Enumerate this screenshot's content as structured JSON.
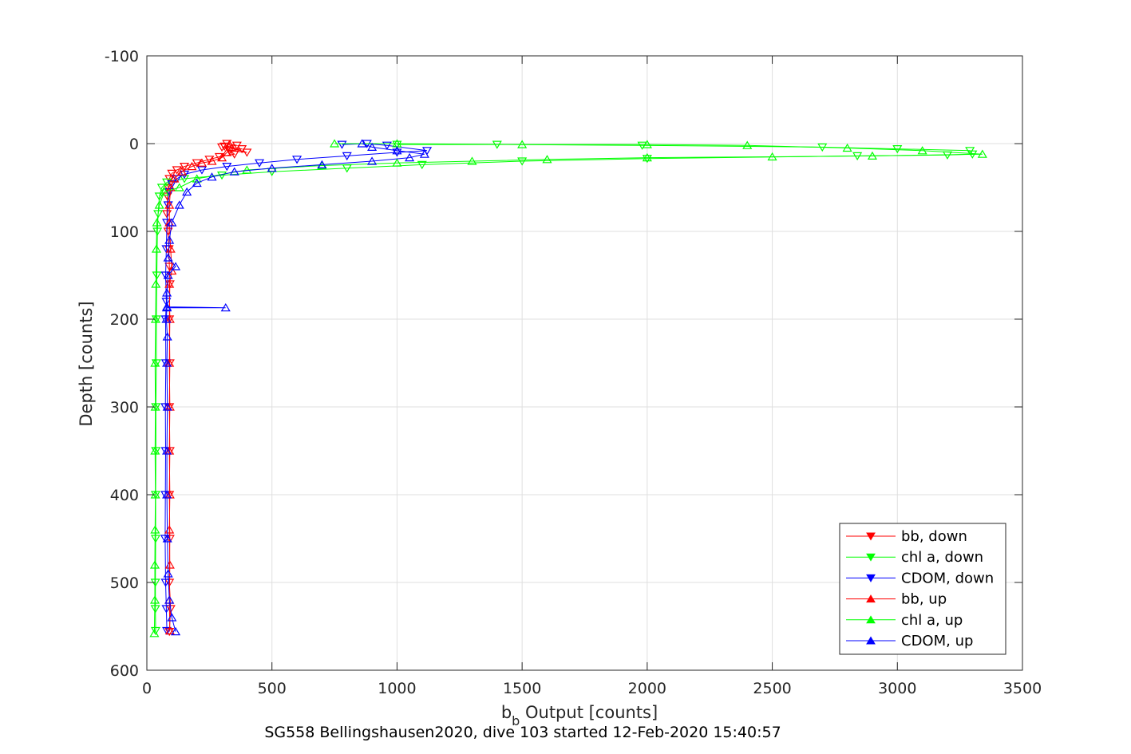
{
  "chart_data": {
    "type": "line",
    "xlabel_main": "b",
    "xlabel_sub": "b",
    "xlabel_rest": " Output [counts]",
    "ylabel": "Depth [counts]",
    "caption": "SG558 Bellingshausen2020, dive 103 started 12-Feb-2020 15:40:57",
    "xlim": [
      0,
      3500
    ],
    "ylim": [
      -100,
      600
    ],
    "y_reversed": true,
    "grid": true,
    "legend_position": "bottom-right",
    "x_ticks": [
      "0",
      "500",
      "1000",
      "1500",
      "2000",
      "2500",
      "3000",
      "3500"
    ],
    "y_ticks": [
      "-100",
      "0",
      "100",
      "200",
      "300",
      "400",
      "500",
      "600"
    ],
    "series": [
      {
        "name": "bb, down",
        "color": "#ff0000",
        "marker": "triangle-down",
        "points": [
          [
            320,
            0
          ],
          [
            360,
            2
          ],
          [
            300,
            4
          ],
          [
            380,
            6
          ],
          [
            330,
            8
          ],
          [
            400,
            10
          ],
          [
            310,
            3
          ],
          [
            350,
            12
          ],
          [
            290,
            15
          ],
          [
            250,
            18
          ],
          [
            200,
            22
          ],
          [
            150,
            26
          ],
          [
            120,
            30
          ],
          [
            100,
            34
          ],
          [
            90,
            40
          ],
          [
            85,
            50
          ],
          [
            82,
            60
          ],
          [
            80,
            80
          ],
          [
            85,
            100
          ],
          [
            88,
            120
          ],
          [
            90,
            140
          ],
          [
            92,
            160
          ],
          [
            90,
            200
          ],
          [
            92,
            250
          ],
          [
            90,
            300
          ],
          [
            92,
            350
          ],
          [
            90,
            400
          ],
          [
            92,
            450
          ],
          [
            90,
            500
          ],
          [
            95,
            530
          ],
          [
            90,
            556
          ]
        ]
      },
      {
        "name": "chl a, down",
        "color": "#00ff00",
        "marker": "triangle-down",
        "points": [
          [
            1000,
            1
          ],
          [
            1400,
            1
          ],
          [
            1980,
            2
          ],
          [
            2700,
            4
          ],
          [
            3000,
            6
          ],
          [
            3290,
            8
          ],
          [
            3300,
            12
          ],
          [
            3200,
            13
          ],
          [
            2840,
            14
          ],
          [
            2000,
            17
          ],
          [
            1500,
            20
          ],
          [
            1100,
            24
          ],
          [
            800,
            28
          ],
          [
            500,
            32
          ],
          [
            300,
            36
          ],
          [
            150,
            40
          ],
          [
            80,
            44
          ],
          [
            60,
            50
          ],
          [
            50,
            60
          ],
          [
            45,
            80
          ],
          [
            42,
            100
          ],
          [
            40,
            150
          ],
          [
            38,
            200
          ],
          [
            38,
            250
          ],
          [
            36,
            300
          ],
          [
            36,
            350
          ],
          [
            35,
            400
          ],
          [
            35,
            450
          ],
          [
            34,
            500
          ],
          [
            34,
            530
          ],
          [
            35,
            555
          ]
        ]
      },
      {
        "name": "CDOM, down",
        "color": "#0000ff",
        "marker": "triangle-down",
        "points": [
          [
            780,
            1
          ],
          [
            880,
            0
          ],
          [
            960,
            2
          ],
          [
            1120,
            8
          ],
          [
            1000,
            10
          ],
          [
            800,
            14
          ],
          [
            600,
            18
          ],
          [
            450,
            22
          ],
          [
            320,
            26
          ],
          [
            220,
            30
          ],
          [
            150,
            35
          ],
          [
            120,
            40
          ],
          [
            100,
            46
          ],
          [
            90,
            55
          ],
          [
            85,
            70
          ],
          [
            80,
            90
          ],
          [
            78,
            120
          ],
          [
            75,
            150
          ],
          [
            78,
            180
          ],
          [
            75,
            200
          ],
          [
            76,
            250
          ],
          [
            74,
            300
          ],
          [
            75,
            350
          ],
          [
            74,
            400
          ],
          [
            73,
            450
          ],
          [
            75,
            500
          ],
          [
            78,
            530
          ],
          [
            80,
            555
          ]
        ]
      },
      {
        "name": "bb, up",
        "color": "#ff0000",
        "marker": "triangle-up",
        "points": [
          [
            92,
            555
          ],
          [
            90,
            520
          ],
          [
            92,
            480
          ],
          [
            90,
            440
          ],
          [
            92,
            400
          ],
          [
            90,
            350
          ],
          [
            92,
            300
          ],
          [
            90,
            250
          ],
          [
            92,
            200
          ],
          [
            90,
            160
          ],
          [
            100,
            145
          ],
          [
            95,
            120
          ],
          [
            90,
            90
          ],
          [
            90,
            70
          ],
          [
            95,
            50
          ],
          [
            110,
            40
          ],
          [
            140,
            32
          ],
          [
            180,
            26
          ],
          [
            220,
            22
          ],
          [
            260,
            20
          ],
          [
            300,
            16
          ],
          [
            320,
            10
          ],
          [
            340,
            5
          ],
          [
            330,
            1
          ]
        ]
      },
      {
        "name": "chl a, up",
        "color": "#00ff00",
        "marker": "triangle-up",
        "points": [
          [
            30,
            558
          ],
          [
            32,
            520
          ],
          [
            32,
            480
          ],
          [
            33,
            440
          ],
          [
            34,
            400
          ],
          [
            33,
            350
          ],
          [
            34,
            300
          ],
          [
            33,
            250
          ],
          [
            35,
            200
          ],
          [
            36,
            160
          ],
          [
            38,
            120
          ],
          [
            40,
            90
          ],
          [
            50,
            70
          ],
          [
            70,
            55
          ],
          [
            130,
            50
          ],
          [
            200,
            40
          ],
          [
            400,
            30
          ],
          [
            700,
            25
          ],
          [
            1000,
            22
          ],
          [
            1300,
            20
          ],
          [
            1600,
            18
          ],
          [
            2000,
            16
          ],
          [
            2500,
            15
          ],
          [
            2900,
            14
          ],
          [
            3340,
            12
          ],
          [
            3100,
            8
          ],
          [
            2800,
            5
          ],
          [
            2400,
            2
          ],
          [
            2000,
            1
          ],
          [
            1500,
            1
          ],
          [
            1000,
            0
          ],
          [
            750,
            0
          ]
        ]
      },
      {
        "name": "CDOM, up",
        "color": "#0000ff",
        "marker": "triangle-up",
        "points": [
          [
            115,
            556
          ],
          [
            100,
            540
          ],
          [
            90,
            520
          ],
          [
            85,
            490
          ],
          [
            82,
            450
          ],
          [
            80,
            400
          ],
          [
            80,
            350
          ],
          [
            82,
            300
          ],
          [
            80,
            250
          ],
          [
            82,
            220
          ],
          [
            78,
            200
          ],
          [
            80,
            187
          ],
          [
            315,
            187
          ],
          [
            80,
            186
          ],
          [
            80,
            170
          ],
          [
            85,
            150
          ],
          [
            115,
            140
          ],
          [
            85,
            130
          ],
          [
            90,
            110
          ],
          [
            100,
            90
          ],
          [
            130,
            70
          ],
          [
            160,
            55
          ],
          [
            200,
            45
          ],
          [
            260,
            38
          ],
          [
            350,
            32
          ],
          [
            500,
            28
          ],
          [
            700,
            24
          ],
          [
            900,
            20
          ],
          [
            1050,
            16
          ],
          [
            1110,
            12
          ],
          [
            1000,
            8
          ],
          [
            900,
            4
          ],
          [
            860,
            0
          ]
        ]
      }
    ]
  }
}
